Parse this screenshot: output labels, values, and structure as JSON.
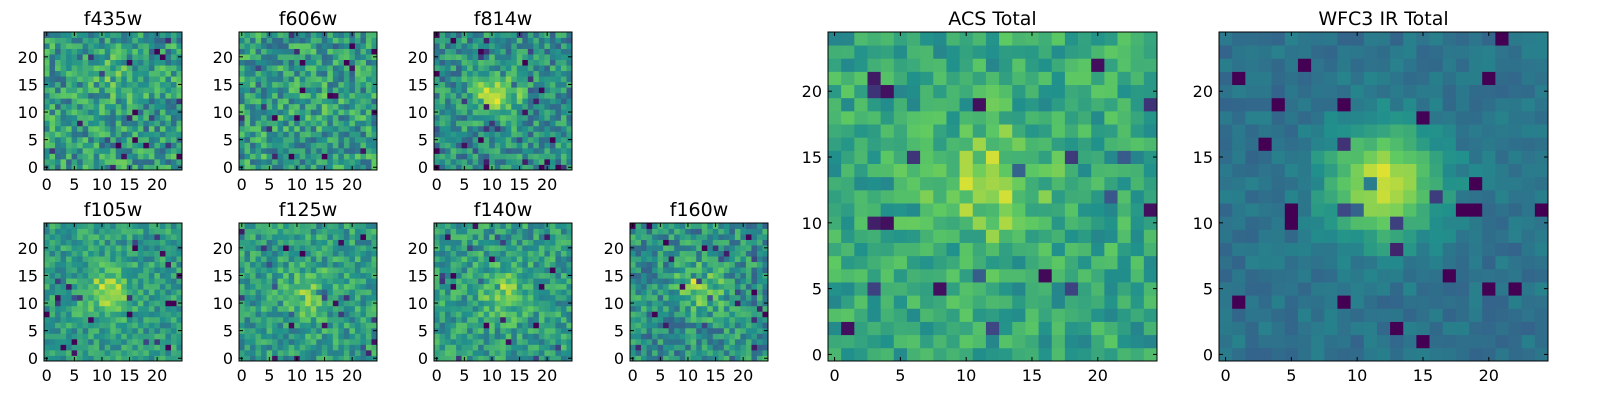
{
  "figure": {
    "colormap": "viridis",
    "colors": {
      "dark": "#440154",
      "mid": "#21918c",
      "bright": "#fde725"
    }
  },
  "chart_data": [
    {
      "type": "heatmap",
      "title": "f435w",
      "pixels": 25,
      "xticks": [
        0,
        5,
        10,
        15,
        20
      ],
      "yticks": [
        0,
        5,
        10,
        15,
        20
      ],
      "xlim": [
        0,
        24
      ],
      "ylim": [
        0,
        24
      ],
      "source_center": [
        12,
        16
      ],
      "source_strength": 0.08,
      "noise": 0.45,
      "base": 0.55
    },
    {
      "type": "heatmap",
      "title": "f606w",
      "pixels": 25,
      "xticks": [
        0,
        5,
        10,
        15,
        20
      ],
      "yticks": [
        0,
        5,
        10,
        15,
        20
      ],
      "xlim": [
        0,
        24
      ],
      "ylim": [
        0,
        24
      ],
      "source_center": [
        12,
        12
      ],
      "source_strength": 0.05,
      "noise": 0.45,
      "base": 0.55
    },
    {
      "type": "heatmap",
      "title": "f814w",
      "pixels": 25,
      "xticks": [
        0,
        5,
        10,
        15,
        20
      ],
      "yticks": [
        0,
        5,
        10,
        15,
        20
      ],
      "xlim": [
        0,
        24
      ],
      "ylim": [
        0,
        24
      ],
      "source_center": [
        11,
        13
      ],
      "source_strength": 0.35,
      "noise": 0.4,
      "base": 0.5
    },
    {
      "type": "heatmap",
      "title": "f105w",
      "pixels": 25,
      "xticks": [
        0,
        5,
        10,
        15,
        20
      ],
      "yticks": [
        0,
        5,
        10,
        15,
        20
      ],
      "xlim": [
        0,
        24
      ],
      "ylim": [
        0,
        24
      ],
      "source_center": [
        11,
        12
      ],
      "source_strength": 0.3,
      "noise": 0.3,
      "base": 0.55
    },
    {
      "type": "heatmap",
      "title": "f125w",
      "pixels": 25,
      "xticks": [
        0,
        5,
        10,
        15,
        20
      ],
      "yticks": [
        0,
        5,
        10,
        15,
        20
      ],
      "xlim": [
        0,
        24
      ],
      "ylim": [
        0,
        24
      ],
      "source_center": [
        12,
        12
      ],
      "source_strength": 0.2,
      "noise": 0.35,
      "base": 0.55
    },
    {
      "type": "heatmap",
      "title": "f140w",
      "pixels": 25,
      "xticks": [
        0,
        5,
        10,
        15,
        20
      ],
      "yticks": [
        0,
        5,
        10,
        15,
        20
      ],
      "xlim": [
        0,
        24
      ],
      "ylim": [
        0,
        24
      ],
      "source_center": [
        12,
        12
      ],
      "source_strength": 0.25,
      "noise": 0.35,
      "base": 0.55
    },
    {
      "type": "heatmap",
      "title": "f160w",
      "pixels": 25,
      "xticks": [
        0,
        5,
        10,
        15,
        20
      ],
      "yticks": [
        0,
        5,
        10,
        15,
        20
      ],
      "xlim": [
        0,
        24
      ],
      "ylim": [
        0,
        24
      ],
      "source_center": [
        12,
        13
      ],
      "source_strength": 0.3,
      "noise": 0.4,
      "base": 0.5
    },
    {
      "type": "heatmap",
      "title": "ACS Total",
      "pixels": 25,
      "xticks": [
        0,
        5,
        10,
        15,
        20
      ],
      "yticks": [
        0,
        5,
        10,
        15,
        20
      ],
      "xlim": [
        0,
        24
      ],
      "ylim": [
        0,
        24
      ],
      "source_center": [
        12,
        13
      ],
      "source_strength": 0.25,
      "noise": 0.3,
      "base": 0.6
    },
    {
      "type": "heatmap",
      "title": "WFC3 IR Total",
      "pixels": 25,
      "xticks": [
        0,
        5,
        10,
        15,
        20
      ],
      "yticks": [
        0,
        5,
        10,
        15,
        20
      ],
      "xlim": [
        0,
        24
      ],
      "ylim": [
        0,
        24
      ],
      "source_center": [
        12,
        13
      ],
      "source_strength": 0.55,
      "noise": 0.12,
      "base": 0.38
    }
  ]
}
